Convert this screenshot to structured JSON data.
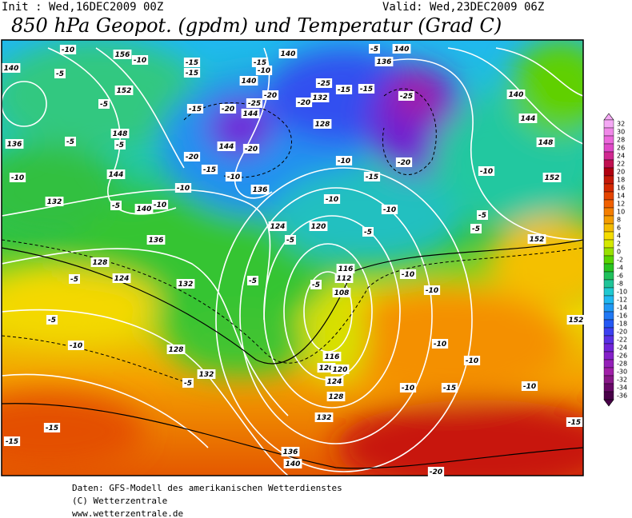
{
  "header": {
    "init": "Init : Wed,16DEC2009 00Z",
    "valid": "Valid: Wed,23DEC2009 06Z",
    "title": "850 hPa Geopot. (gpdm) und Temperatur (Grad C)"
  },
  "colorbar": {
    "levels": [
      32,
      30,
      28,
      26,
      24,
      22,
      20,
      18,
      16,
      14,
      12,
      10,
      8,
      6,
      4,
      2,
      0,
      -2,
      -4,
      -6,
      -8,
      -10,
      -12,
      -14,
      -16,
      -18,
      -20,
      -22,
      -24,
      -26,
      -28,
      -30,
      -32,
      -34,
      -36
    ],
    "colors": [
      "#f4a8f4",
      "#f088e8",
      "#ec68dc",
      "#e048c8",
      "#d02890",
      "#c01050",
      "#b00010",
      "#c41808",
      "#d42800",
      "#e44400",
      "#f06000",
      "#f47e00",
      "#f49c00",
      "#f4bc00",
      "#f4dc00",
      "#d4e800",
      "#98e000",
      "#58d400",
      "#28c420",
      "#20c05c",
      "#20c498",
      "#20c8d0",
      "#20b8f0",
      "#2098f4",
      "#2078f4",
      "#2458f4",
      "#3c40f0",
      "#5830e4",
      "#7024d8",
      "#8420c8",
      "#9420b8",
      "#a020a8",
      "#881888",
      "#680868",
      "#480048"
    ]
  },
  "geopotential_labels": [
    140,
    156,
    152,
    148,
    144,
    140,
    136,
    132,
    128,
    132,
    136,
    132,
    128,
    124,
    140,
    140,
    144,
    144,
    136,
    132,
    128,
    124,
    120,
    116,
    112,
    108,
    116,
    120,
    120,
    124,
    128,
    132,
    136,
    140,
    136,
    140,
    140,
    144,
    148,
    152,
    152,
    152
  ],
  "temperature_labels": [
    -10,
    -10,
    -5,
    -15,
    -15,
    -15,
    -10,
    -5,
    -5,
    -5,
    -10,
    -10,
    -5,
    -15,
    -20,
    -25,
    -20,
    -20,
    -25,
    -15,
    -15,
    -25,
    -20,
    -20,
    -15,
    -10,
    -10,
    -10,
    -15,
    -20,
    -10,
    -10,
    -5,
    -5,
    -5,
    -5,
    -5,
    -5,
    -10,
    -5,
    -15,
    -15,
    -10,
    -5,
    -5,
    -10,
    -10,
    -10,
    -10,
    -15,
    -10,
    -15,
    -20,
    -5,
    -10
  ],
  "footer": {
    "source": "Daten: GFS-Modell des amerikanischen Wetterdienstes",
    "copyright": "(C) Wetterzentrale",
    "url": "www.wetterzentrale.de"
  }
}
